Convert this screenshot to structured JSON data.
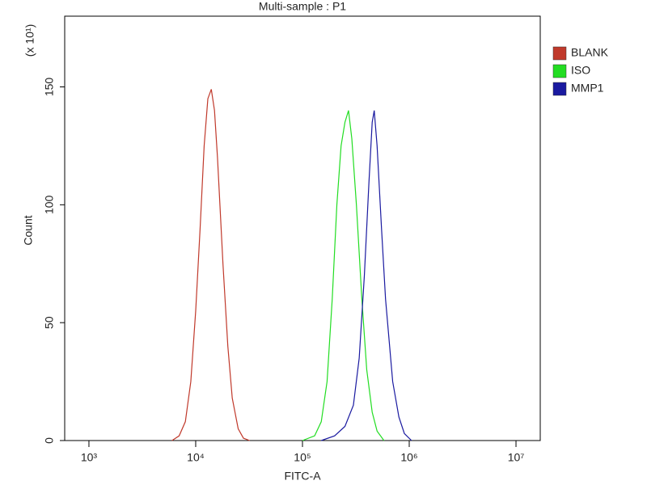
{
  "chart_data": {
    "type": "line",
    "title": "Multi-sample : P1",
    "x_label": "FITC-A",
    "y_label": "Count",
    "y_multiplier": "(x 10¹)",
    "xscale": "log",
    "xlim": [
      593,
      16870000
    ],
    "xticks": [
      {
        "value": 1000,
        "label": "10³"
      },
      {
        "value": 10000,
        "label": "10⁴"
      },
      {
        "value": 100000,
        "label": "10⁵"
      },
      {
        "value": 1000000,
        "label": "10⁶"
      },
      {
        "value": 10000000,
        "label": "10⁷"
      }
    ],
    "ylim": [
      0,
      180
    ],
    "yticks": [
      0,
      50,
      100,
      150
    ],
    "legend": "right",
    "series": [
      {
        "name": "BLANK",
        "color": "#c0392b",
        "x": [
          6000,
          7000,
          8000,
          9000,
          10000,
          11000,
          12000,
          13000,
          14000,
          15000,
          16000,
          18000,
          20000,
          22000,
          25000,
          28000,
          32000
        ],
        "values": [
          0,
          2,
          8,
          25,
          55,
          90,
          125,
          145,
          149,
          140,
          120,
          75,
          40,
          18,
          5,
          1,
          0
        ]
      },
      {
        "name": "ISO",
        "color": "#22dd22",
        "x": [
          100000,
          130000,
          150000,
          170000,
          190000,
          210000,
          230000,
          250000,
          270000,
          290000,
          320000,
          360000,
          400000,
          450000,
          500000,
          580000
        ],
        "values": [
          0,
          2,
          8,
          25,
          60,
          100,
          125,
          135,
          140,
          128,
          100,
          60,
          30,
          12,
          4,
          0
        ]
      },
      {
        "name": "MMP1",
        "color": "#1a1aa0",
        "x": [
          150000,
          200000,
          250000,
          300000,
          340000,
          380000,
          420000,
          450000,
          470000,
          500000,
          550000,
          600000,
          700000,
          800000,
          900000,
          1050000
        ],
        "values": [
          0,
          2,
          6,
          15,
          35,
          70,
          110,
          135,
          140,
          125,
          90,
          60,
          25,
          10,
          3,
          0
        ]
      }
    ]
  }
}
